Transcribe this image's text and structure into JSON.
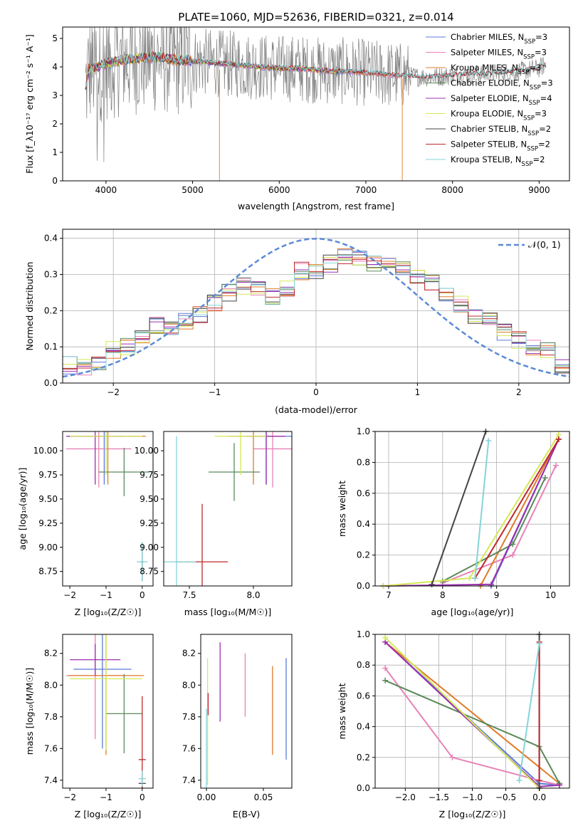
{
  "figure_title": "PLATE=1060, MJD=52636, FIBERID=0321, z=0.014",
  "colors": {
    "chabrier_miles": "#5b7bd5",
    "salpeter_miles": "#e882b8",
    "kroupa_miles": "#e07b27",
    "chabrier_elodie": "#5b8a5b",
    "salpeter_elodie": "#9b30b0",
    "kroupa_elodie": "#d4e857",
    "chabrier_stelib": "#444444",
    "salpeter_stelib": "#c0282d",
    "kroupa_stelib": "#86d4d8",
    "data": "#808080",
    "normal": "#5b8ad5",
    "grid": "#b0b0b0"
  },
  "chart_data": [
    {
      "type": "line",
      "title": "",
      "xlabel": "wavelength [Angstrom, rest frame]",
      "ylabel": "Flux [f_λ10⁻¹⁷ erg cm⁻² s⁻¹ A⁻¹]",
      "xlim": [
        3500,
        9350
      ],
      "ylim": [
        0,
        5.4
      ],
      "xticks": [
        "4000",
        "5000",
        "6000",
        "7000",
        "8000",
        "9000"
      ],
      "yticks": [
        "0",
        "1",
        "2",
        "3",
        "4",
        "5"
      ],
      "grid": false,
      "legend_position": "top-right",
      "legend": [
        {
          "label": "Chabrier MILES, N",
          "sub": "SSP",
          "suffix": "=3",
          "color": "chabrier_miles"
        },
        {
          "label": "Salpeter MILES, N",
          "sub": "SSP",
          "suffix": "=3",
          "color": "salpeter_miles"
        },
        {
          "label": "Kroupa MILES, N",
          "sub": "SSP",
          "suffix": "=3",
          "color": "kroupa_miles"
        },
        {
          "label": "Chabrier ELODIE, N",
          "sub": "SSP",
          "suffix": "=3",
          "color": "chabrier_elodie"
        },
        {
          "label": "Salpeter ELODIE, N",
          "sub": "SSP",
          "suffix": "=4",
          "color": "salpeter_elodie"
        },
        {
          "label": "Kroupa ELODIE, N",
          "sub": "SSP",
          "suffix": "=3",
          "color": "kroupa_elodie"
        },
        {
          "label": "Chabrier STELIB, N",
          "sub": "SSP",
          "suffix": "=2",
          "color": "chabrier_stelib"
        },
        {
          "label": "Salpeter STELIB, N",
          "sub": "SSP",
          "suffix": "=2",
          "color": "salpeter_stelib"
        },
        {
          "label": "Kroupa STELIB, N",
          "sub": "SSP",
          "suffix": "=2",
          "color": "kroupa_stelib"
        }
      ],
      "model_trend": {
        "x": [
          3750,
          3800,
          3900,
          4000,
          4200,
          4400,
          4600,
          4800,
          5000,
          5200,
          5400,
          5600,
          5800,
          6000,
          6200,
          6400,
          6600,
          6800,
          7000,
          7200,
          7400,
          7600,
          7800,
          8000,
          8200,
          8400,
          8600,
          8800,
          9000,
          9050
        ],
        "y": [
          3.0,
          3.9,
          4.0,
          4.1,
          4.25,
          4.3,
          4.35,
          4.25,
          4.2,
          4.15,
          4.1,
          4.05,
          4.0,
          3.95,
          3.95,
          3.9,
          3.85,
          3.85,
          3.8,
          3.75,
          3.7,
          3.65,
          3.65,
          3.7,
          3.75,
          3.75,
          3.8,
          3.85,
          3.95,
          4.05
        ]
      },
      "data_range": [
        3760,
        9080
      ]
    },
    {
      "type": "bar",
      "subtype": "step-histogram",
      "xlabel": "(data-model)/error",
      "ylabel": "Normed distribution",
      "xlim": [
        -2.5,
        2.5
      ],
      "ylim": [
        0,
        0.425
      ],
      "xticks": [
        "−2",
        "−1",
        "0",
        "1",
        "2"
      ],
      "yticks": [
        "0.0",
        "0.1",
        "0.2",
        "0.3",
        "0.4"
      ],
      "grid": true,
      "legend_position": "top-right",
      "legend_label": "𝒩(0, 1)",
      "bin_edges_range": [
        -2.5,
        2.5
      ],
      "bins": 35,
      "typical_values": [
        0.05,
        0.04,
        0.06,
        0.09,
        0.1,
        0.12,
        0.16,
        0.15,
        0.17,
        0.19,
        0.22,
        0.25,
        0.27,
        0.26,
        0.24,
        0.26,
        0.31,
        0.31,
        0.33,
        0.35,
        0.34,
        0.33,
        0.34,
        0.32,
        0.3,
        0.28,
        0.24,
        0.22,
        0.19,
        0.17,
        0.14,
        0.12,
        0.1,
        0.09,
        0.05
      ]
    },
    {
      "type": "scatter",
      "subtype": "errorbar",
      "xlabel": "Z [log₁₀(Z/Z☉)]",
      "ylabel": "age  [log₁₀(age/yr)]",
      "xlim": [
        -2.2,
        0.3
      ],
      "ylim": [
        8.6,
        10.2
      ],
      "xticks": [
        "−2",
        "−1",
        "0"
      ],
      "yticks": [
        "8.75",
        "9.00",
        "9.25",
        "9.50",
        "9.75",
        "10.00"
      ],
      "points": [
        {
          "series": "chabrier_miles",
          "x": -1.05,
          "y": 10.15,
          "xerr": 1.0,
          "yerr": 0.5
        },
        {
          "series": "salpeter_miles",
          "x": -1.2,
          "y": 10.02,
          "xerr": 0.9,
          "yerr": 0.4
        },
        {
          "series": "kroupa_miles",
          "x": -0.95,
          "y": 10.15,
          "xerr": 1.05,
          "yerr": 0.5
        },
        {
          "series": "chabrier_elodie",
          "x": -0.5,
          "y": 9.78,
          "xerr": 0.7,
          "yerr": 0.25
        },
        {
          "series": "salpeter_elodie",
          "x": -1.3,
          "y": 10.15,
          "xerr": 0.8,
          "yerr": 0.5
        },
        {
          "series": "kroupa_elodie",
          "x": -1.0,
          "y": 10.15,
          "xerr": 1.0,
          "yerr": 0.4
        },
        {
          "series": "chabrier_stelib",
          "x": 0.0,
          "y": 8.85,
          "xerr": 0.05,
          "yerr": 0.2
        },
        {
          "series": "kroupa_stelib",
          "x": 0.0,
          "y": 8.85,
          "xerr": 0.15,
          "yerr": 0.2
        }
      ]
    },
    {
      "type": "scatter",
      "subtype": "errorbar",
      "xlabel": "mass [log₁₀(M/M☉)]",
      "ylabel": "",
      "xlim": [
        7.3,
        8.3
      ],
      "ylim": [
        8.6,
        10.2
      ],
      "xticks": [
        "7.5",
        "8.0"
      ],
      "yticks": [
        "8.75",
        "9.00",
        "9.25",
        "9.50",
        "9.75",
        "10.00"
      ],
      "points": [
        {
          "series": "chabrier_miles",
          "x": 8.1,
          "y": 10.15,
          "xerr": 0.2,
          "yerr": 0.5
        },
        {
          "series": "salpeter_miles",
          "x": 8.15,
          "y": 10.02,
          "xerr": 0.15,
          "yerr": 0.4
        },
        {
          "series": "kroupa_miles",
          "x": 8.0,
          "y": 10.15,
          "xerr": 0.2,
          "yerr": 0.5
        },
        {
          "series": "chabrier_elodie",
          "x": 7.85,
          "y": 9.78,
          "xerr": 0.2,
          "yerr": 0.3
        },
        {
          "series": "salpeter_elodie",
          "x": 8.1,
          "y": 10.15,
          "xerr": 0.15,
          "yerr": 0.5
        },
        {
          "series": "kroupa_elodie",
          "x": 7.9,
          "y": 10.15,
          "xerr": 0.2,
          "yerr": 0.4
        },
        {
          "series": "salpeter_stelib",
          "x": 7.6,
          "y": 8.85,
          "xerr": 0.2,
          "yerr": 0.6
        },
        {
          "series": "kroupa_stelib",
          "x": 7.4,
          "y": 8.85,
          "xerr": 0.15,
          "yerr": 1.3
        }
      ]
    },
    {
      "type": "line",
      "xlabel": "age  [log₁₀(age/yr)]",
      "ylabel": "mass weight",
      "xlim": [
        6.75,
        10.35
      ],
      "ylim": [
        0,
        1
      ],
      "xticks": [
        "7",
        "8",
        "9",
        "10"
      ],
      "yticks": [
        "0.0",
        "0.2",
        "0.4",
        "0.6",
        "0.8",
        "1.0"
      ],
      "grid": true,
      "series": [
        {
          "name": "Chabrier MILES",
          "color": "chabrier_miles",
          "x": [
            8.9,
            10.15
          ],
          "y": [
            0.0,
            0.95
          ]
        },
        {
          "name": "Salpeter MILES",
          "color": "salpeter_miles",
          "x": [
            8.0,
            9.3,
            10.1
          ],
          "y": [
            0.02,
            0.2,
            0.78
          ]
        },
        {
          "name": "Kroupa MILES",
          "color": "kroupa_miles",
          "x": [
            8.7,
            10.15
          ],
          "y": [
            0.0,
            0.95
          ]
        },
        {
          "name": "Chabrier ELODIE",
          "color": "chabrier_elodie",
          "x": [
            8.0,
            9.3,
            9.9
          ],
          "y": [
            0.03,
            0.27,
            0.7
          ]
        },
        {
          "name": "Salpeter ELODIE",
          "color": "salpeter_elodie",
          "x": [
            6.9,
            8.9,
            10.15
          ],
          "y": [
            0.0,
            0.01,
            0.95
          ]
        },
        {
          "name": "Kroupa ELODIE",
          "color": "kroupa_elodie",
          "x": [
            6.9,
            8.5,
            10.15
          ],
          "y": [
            0.0,
            0.05,
            0.98
          ]
        },
        {
          "name": "Chabrier STELIB",
          "color": "chabrier_stelib",
          "x": [
            7.8,
            8.8
          ],
          "y": [
            0.01,
            1.0
          ]
        },
        {
          "name": "Salpeter STELIB",
          "color": "salpeter_stelib",
          "x": [
            8.6,
            10.15
          ],
          "y": [
            0.05,
            0.95
          ]
        },
        {
          "name": "Kroupa STELIB",
          "color": "kroupa_stelib",
          "x": [
            8.6,
            8.85
          ],
          "y": [
            0.05,
            0.94
          ]
        }
      ]
    },
    {
      "type": "scatter",
      "subtype": "errorbar",
      "xlabel": "Z [log₁₀(Z/Z☉)]",
      "ylabel": "mass [log₁₀(M/M☉)]",
      "xlim": [
        -2.2,
        0.3
      ],
      "ylim": [
        7.35,
        8.32
      ],
      "xticks": [
        "−2",
        "−1",
        "0"
      ],
      "yticks": [
        "7.4",
        "7.6",
        "7.8",
        "8.0",
        "8.2"
      ],
      "points": [
        {
          "series": "chabrier_miles",
          "x": -1.1,
          "y": 8.1,
          "xerr": 0.8,
          "yerr": 0.5
        },
        {
          "series": "salpeter_miles",
          "x": -1.3,
          "y": 8.06,
          "xerr": 0.8,
          "yerr": 0.4
        },
        {
          "series": "kroupa_miles",
          "x": -1.0,
          "y": 8.06,
          "xerr": 1.05,
          "yerr": 0.5
        },
        {
          "series": "chabrier_elodie",
          "x": -0.5,
          "y": 7.82,
          "xerr": 0.5,
          "yerr": 0.25
        },
        {
          "series": "salpeter_elodie",
          "x": -1.3,
          "y": 8.16,
          "xerr": 0.7,
          "yerr": 0.1
        },
        {
          "series": "kroupa_elodie",
          "x": -1.0,
          "y": 8.04,
          "xerr": 1.0,
          "yerr": 0.45
        },
        {
          "series": "chabrier_stelib",
          "x": 0.0,
          "y": 7.38,
          "xerr": 0.1,
          "yerr": 0.05
        },
        {
          "series": "salpeter_stelib",
          "x": 0.0,
          "y": 7.53,
          "xerr": 0.1,
          "yerr": 0.4
        },
        {
          "series": "kroupa_stelib",
          "x": 0.0,
          "y": 7.41,
          "xerr": 0.1,
          "yerr": 0.05
        }
      ]
    },
    {
      "type": "scatter",
      "subtype": "errorbar",
      "xlabel": "E(B-V)",
      "ylabel": "",
      "xlim": [
        -0.005,
        0.075
      ],
      "ylim": [
        7.35,
        8.32
      ],
      "xticks": [
        "0.00",
        "0.05"
      ],
      "yticks": [
        "7.4",
        "7.6",
        "7.8",
        "8.0",
        "8.2"
      ],
      "points": [
        {
          "series": "chabrier_miles",
          "x": 0.07,
          "y": 7.85,
          "xerr": 0,
          "yerr": 0.32
        },
        {
          "series": "salpeter_miles",
          "x": 0.034,
          "y": 8.0,
          "xerr": 0,
          "yerr": 0.2
        },
        {
          "series": "kroupa_miles",
          "x": 0.058,
          "y": 7.84,
          "xerr": 0,
          "yerr": 0.28
        },
        {
          "series": "salpeter_elodie",
          "x": 0.012,
          "y": 8.02,
          "xerr": 0,
          "yerr": 0.25
        },
        {
          "series": "kroupa_elodie",
          "x": 0.001,
          "y": 7.77,
          "xerr": 0,
          "yerr": 0.4
        },
        {
          "series": "salpeter_stelib",
          "x": 0.0015,
          "y": 7.88,
          "xerr": 0,
          "yerr": 0.07
        },
        {
          "series": "kroupa_stelib",
          "x": 0.0,
          "y": 7.6,
          "xerr": 0,
          "yerr": 0.25
        }
      ]
    },
    {
      "type": "line",
      "xlabel": "Z [log₁₀(Z/Z☉)]",
      "ylabel": "mass weight",
      "xlim": [
        -2.45,
        0.45
      ],
      "ylim": [
        0,
        1
      ],
      "xticks": [
        "−2.0",
        "−1.5",
        "−1.0",
        "−0.5",
        "0.0"
      ],
      "yticks": [
        "0.0",
        "0.2",
        "0.4",
        "0.6",
        "0.8",
        "1.0"
      ],
      "grid": true,
      "series": [
        {
          "name": "Chabrier MILES",
          "color": "chabrier_miles",
          "x": [
            -2.3,
            0.0,
            0.3
          ],
          "y": [
            0.95,
            0.03,
            0.02
          ]
        },
        {
          "name": "Salpeter MILES",
          "color": "salpeter_miles",
          "x": [
            -2.3,
            -1.3,
            0.0,
            0.3
          ],
          "y": [
            0.78,
            0.2,
            0.05,
            0.02
          ]
        },
        {
          "name": "Kroupa MILES",
          "color": "kroupa_miles",
          "x": [
            -2.3,
            0.3
          ],
          "y": [
            0.95,
            0.03
          ]
        },
        {
          "name": "Chabrier ELODIE",
          "color": "chabrier_elodie",
          "x": [
            -2.3,
            0.0,
            0.3
          ],
          "y": [
            0.7,
            0.27,
            0.03
          ]
        },
        {
          "name": "Salpeter ELODIE",
          "color": "salpeter_elodie",
          "x": [
            -2.3,
            0.0,
            0.3
          ],
          "y": [
            0.95,
            0.01,
            0.02
          ]
        },
        {
          "name": "Kroupa ELODIE",
          "color": "kroupa_elodie",
          "x": [
            -2.3,
            0.0
          ],
          "y": [
            0.98,
            0.0
          ]
        },
        {
          "name": "Chabrier STELIB",
          "color": "chabrier_stelib",
          "x": [
            0.0,
            0.0
          ],
          "y": [
            0.0,
            1.0
          ]
        },
        {
          "name": "Salpeter STELIB",
          "color": "salpeter_stelib",
          "x": [
            0.0,
            0.0
          ],
          "y": [
            0.05,
            0.95
          ]
        },
        {
          "name": "Kroupa STELIB",
          "color": "kroupa_stelib",
          "x": [
            -0.3,
            0.0
          ],
          "y": [
            0.05,
            0.94
          ]
        }
      ]
    }
  ]
}
